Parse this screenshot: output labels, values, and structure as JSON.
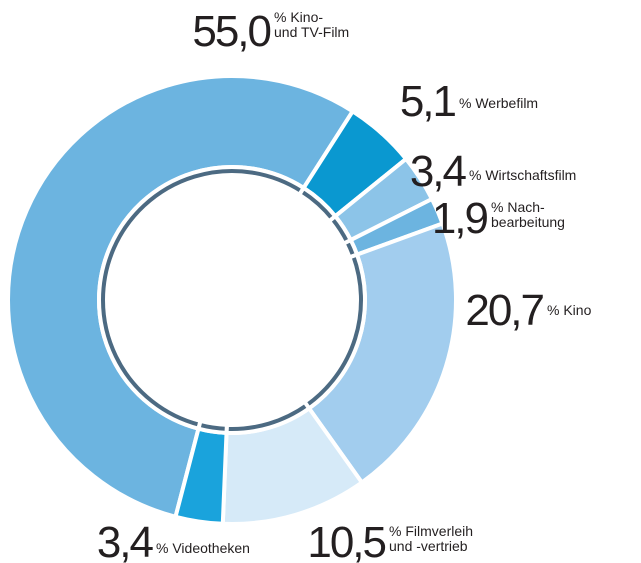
{
  "chart_data": {
    "type": "donut",
    "categories": [
      [
        "Kino-",
        "und TV-Film"
      ],
      [
        "Werbefilm"
      ],
      [
        "Wirtschaftsfilm"
      ],
      [
        "Nach-",
        "bearbeitung"
      ],
      [
        "Kino"
      ],
      [
        "Filmverleih",
        "und -vertrieb"
      ],
      [
        "Videotheken"
      ]
    ],
    "values": [
      55.0,
      5.1,
      3.4,
      1.9,
      20.7,
      10.5,
      3.4
    ],
    "value_labels": [
      "55,0",
      "5,1",
      "3,4",
      "1,9",
      "20,7",
      "10,5",
      "3,4"
    ],
    "unit": "%",
    "colors": [
      "#6cb4e0",
      "#0a98d0",
      "#8cc4e8",
      "#6cb4e0",
      "#a2cdee",
      "#d6eaf8",
      "#1aa3dc"
    ],
    "ring_color": "#4c6a82"
  }
}
